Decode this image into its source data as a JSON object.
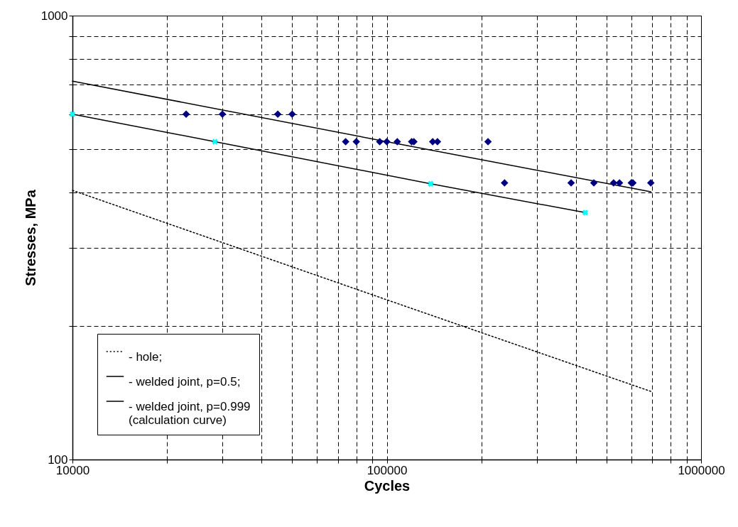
{
  "chart_data": {
    "type": "line",
    "xlabel": "Cycles",
    "ylabel": "Stresses, MPa",
    "log": "xy",
    "grid": true,
    "legend": "bottom left",
    "xlim": [
      10000,
      1000000
    ],
    "ylim": [
      100,
      1000
    ],
    "xticks": [
      10000,
      {
        "value": 20000,
        "label": null
      },
      {
        "value": 30000,
        "label": null
      },
      {
        "value": 40000,
        "label": null
      },
      {
        "value": 50000,
        "label": null
      },
      {
        "value": 60000,
        "label": null
      },
      {
        "value": 70000,
        "label": null
      },
      {
        "value": 80000,
        "label": null
      },
      {
        "value": 90000,
        "label": null
      },
      100000,
      {
        "value": 200000,
        "label": null
      },
      {
        "value": 300000,
        "label": null
      },
      {
        "value": 400000,
        "label": null
      },
      {
        "value": 500000,
        "label": null
      },
      {
        "value": 600000,
        "label": null
      },
      {
        "value": 700000,
        "label": null
      },
      {
        "value": 800000,
        "label": null
      },
      {
        "value": 900000,
        "label": null
      },
      1000000
    ],
    "yticks": [
      100,
      {
        "value": 200,
        "label": null
      },
      {
        "value": 300,
        "label": null
      },
      {
        "value": 400,
        "label": null
      },
      {
        "value": 500,
        "label": null
      },
      {
        "value": 600,
        "label": null
      },
      {
        "value": 700,
        "label": null
      },
      {
        "value": 800,
        "label": null
      },
      {
        "value": 900,
        "label": null
      },
      1000
    ],
    "series": [
      {
        "name": "- hole;",
        "type": "line",
        "color": "#000000",
        "line_style": "dotted",
        "x": [
          10000,
          100000,
          700000
        ],
        "values": [
          404,
          229,
          142
        ]
      },
      {
        "name": "- welded joint, p=0.5;",
        "type": "line",
        "color": "#000000",
        "line_style": "solid",
        "x": [
          10000,
          100000,
          692000
        ],
        "values": [
          712,
          520,
          401
        ]
      },
      {
        "name": "- welded joint, p=0.999\n(calculation curve)",
        "type": "line",
        "color": "#000000",
        "line_style": "solid",
        "x": [
          10000,
          28400,
          138000,
          428000
        ],
        "values": [
          600,
          520,
          418,
          360
        ]
      },
      {
        "type": "scatter",
        "color": "#000080",
        "marker": "diamond",
        "x": [
          23000,
          30000,
          45000,
          50000,
          74000,
          80000,
          95000,
          100000,
          108000,
          120000,
          122000,
          140000,
          145000,
          210000,
          237000,
          386000,
          456000,
          527000,
          550000,
          600000,
          607000,
          692000
        ],
        "values": [
          600,
          600,
          600,
          600,
          520,
          520,
          520,
          520,
          520,
          520,
          520,
          520,
          520,
          520,
          420,
          420,
          420,
          420,
          420,
          420,
          420,
          420
        ]
      },
      {
        "type": "scatter",
        "color": "#00ffff",
        "marker": "cross",
        "x": [
          10000,
          28400,
          138000,
          428000
        ],
        "values": [
          600,
          520,
          418,
          360
        ]
      }
    ]
  }
}
